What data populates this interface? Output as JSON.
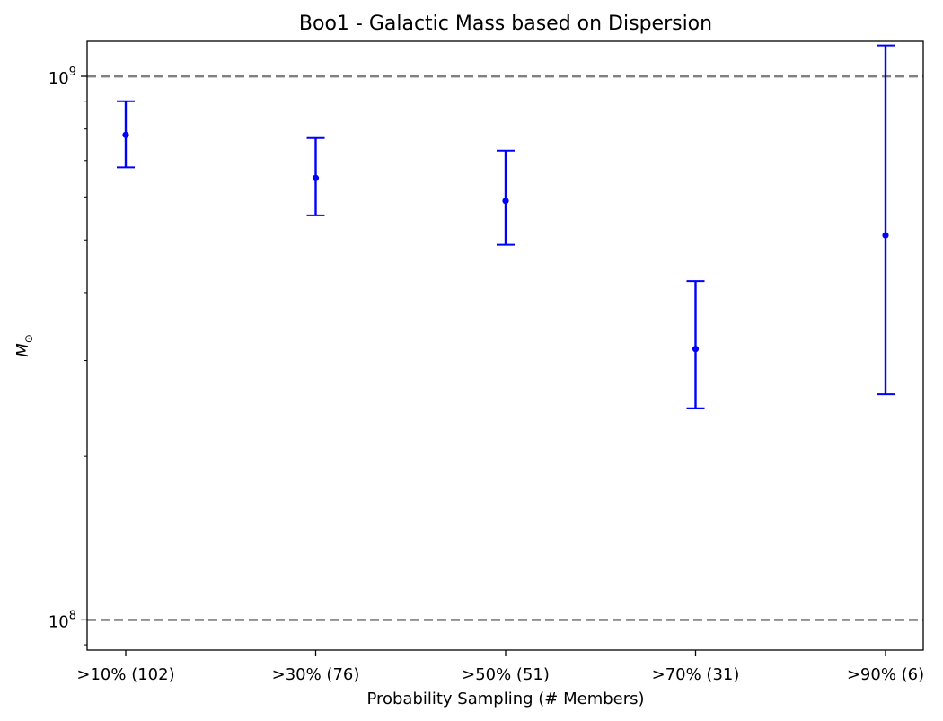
{
  "chart_data": {
    "type": "errorbar",
    "title": "Boo1 - Galactic Mass based on Dispersion",
    "xlabel": "Probability Sampling (# Members)",
    "ylabel_symbol": "M",
    "ylabel_subscript": "⊙",
    "y_scale": "log",
    "ylim": [
      88000000.0,
      1160000000.0
    ],
    "categories": [
      ">10% (102)",
      ">30% (76)",
      ">50% (51)",
      ">70% (31)",
      ">90% (6)"
    ],
    "values": [
      780000000.0,
      650000000.0,
      590000000.0,
      315000000.0,
      510000000.0
    ],
    "lower": [
      680000000.0,
      555000000.0,
      490000000.0,
      245000000.0,
      260000000.0
    ],
    "upper": [
      900000000.0,
      770000000.0,
      730000000.0,
      420000000.0,
      1140000000.0
    ],
    "y_ticks": [
      {
        "value": 100000000.0,
        "base": "10",
        "exp": "8"
      },
      {
        "value": 1000000000.0,
        "base": "10",
        "exp": "9"
      }
    ],
    "reference_lines": [
      100000000.0,
      1000000000.0
    ],
    "colors": {
      "series": "#0000ff",
      "reference": "#808080",
      "axis": "#000000"
    },
    "grid": false
  }
}
